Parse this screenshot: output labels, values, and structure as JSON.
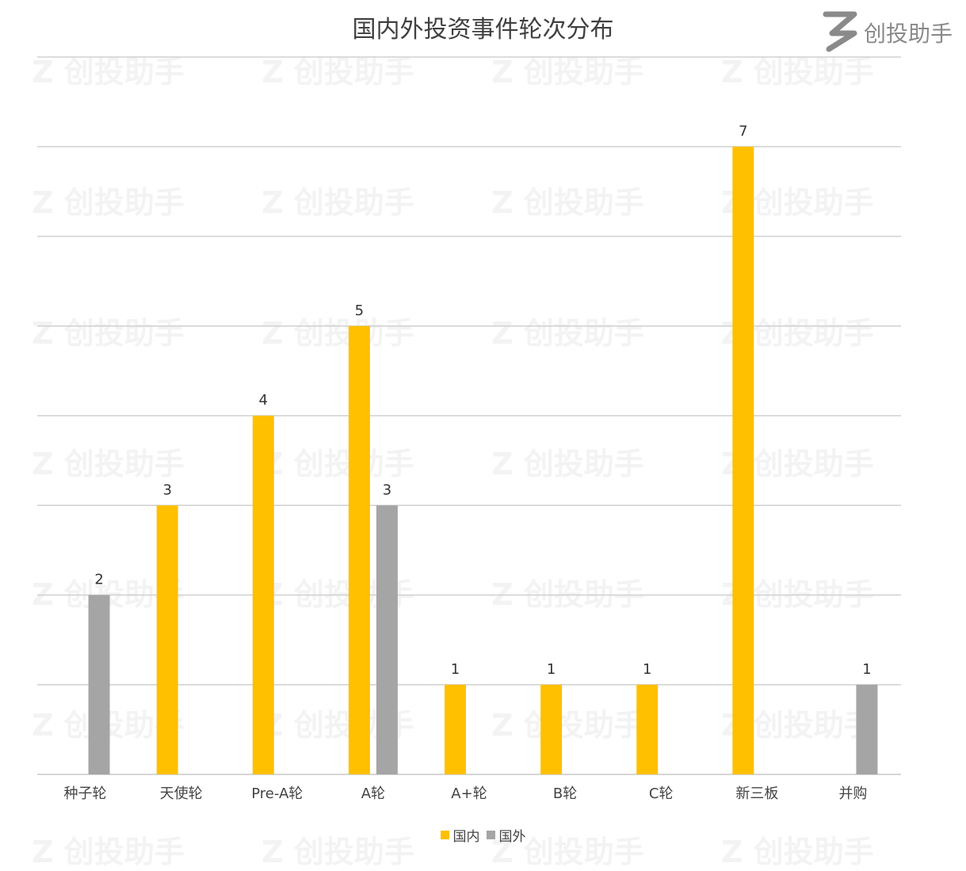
{
  "chart_data": {
    "type": "bar",
    "title": "国内外投资事件轮次分布",
    "categories": [
      "种子轮",
      "天使轮",
      "Pre-A轮",
      "A轮",
      "A+轮",
      "B轮",
      "C轮",
      "新三板",
      "并购"
    ],
    "series": [
      {
        "name": "国内",
        "color": "#FFC000",
        "values": [
          null,
          3,
          4,
          5,
          1,
          1,
          1,
          7,
          null
        ]
      },
      {
        "name": "国外",
        "color": "#A5A5A5",
        "values": [
          2,
          null,
          null,
          3,
          null,
          null,
          null,
          null,
          1
        ]
      }
    ],
    "ylim": [
      0,
      8
    ],
    "grid": true,
    "legend": "bottom",
    "xlabel": "",
    "ylabel": ""
  },
  "brand": {
    "logo_text": "创投助手",
    "watermark_text": "创投助手"
  }
}
